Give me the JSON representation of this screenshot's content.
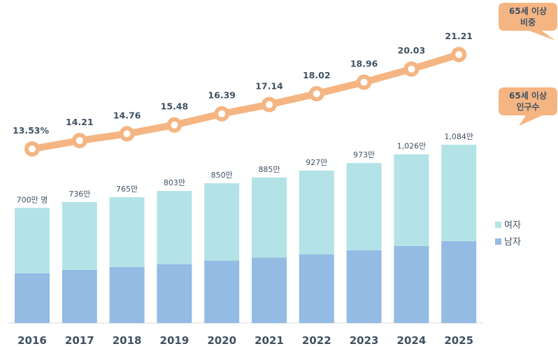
{
  "chart_data": {
    "type": "bar+line",
    "categories": [
      "2016",
      "2017",
      "2018",
      "2019",
      "2020",
      "2021",
      "2022",
      "2023",
      "2024",
      "2025"
    ],
    "series": [
      {
        "name": "남자",
        "type": "bar",
        "stack": "pop",
        "color": "#93bbe3",
        "values": [
          302,
          324,
          340,
          358,
          380,
          398,
          418,
          442,
          468,
          498
        ]
      },
      {
        "name": "여자",
        "type": "bar",
        "stack": "pop",
        "color": "#b3e3e6",
        "values": [
          398,
          412,
          425,
          445,
          470,
          487,
          509,
          531,
          558,
          586
        ]
      },
      {
        "name": "65세 이상 비중",
        "type": "line",
        "color": "#f5b582",
        "values": [
          13.53,
          14.21,
          14.76,
          15.48,
          16.39,
          17.14,
          18.02,
          18.96,
          20.03,
          21.21
        ]
      }
    ],
    "total_labels": [
      "700만 명",
      "736만",
      "765만",
      "803만",
      "850만",
      "885만",
      "927만",
      "973만",
      "1,026만",
      "1,084만"
    ],
    "line_labels": [
      "13.53%",
      "14.21",
      "14.76",
      "15.48",
      "16.39",
      "17.14",
      "18.02",
      "18.96",
      "20.03",
      "21.21"
    ],
    "bar_ylim": [
      0,
      1150
    ],
    "line_ylim": [
      13.0,
      21.8
    ],
    "legend": [
      {
        "label": "여자",
        "color": "#b3e3e6"
      },
      {
        "label": "남자",
        "color": "#93bbe3"
      }
    ],
    "callouts": [
      {
        "lines": [
          "65세 이상",
          "비중"
        ],
        "color": "#f5b582"
      },
      {
        "lines": [
          "65세 이상",
          "인구수"
        ],
        "color": "#f5b582"
      }
    ],
    "xlabel": "",
    "ylabel": "",
    "grid": false
  }
}
